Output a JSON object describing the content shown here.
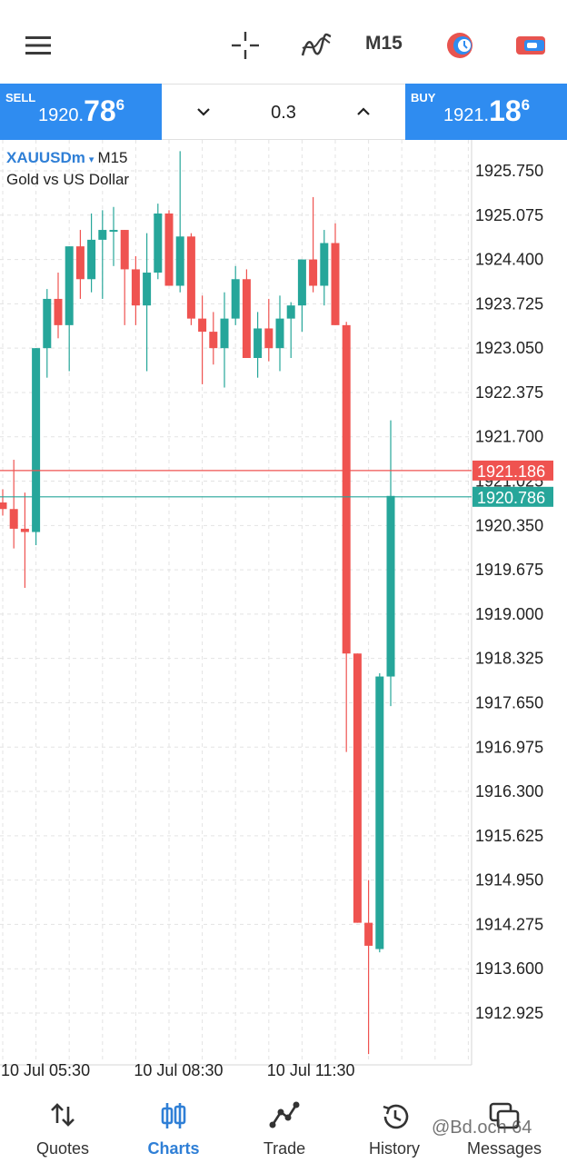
{
  "topbar": {
    "timeframe": "M15",
    "icons": [
      "menu-icon",
      "crosshair-icon",
      "indicators-icon",
      "timeframe",
      "objects-icon",
      "one-click-trading-icon"
    ]
  },
  "trade_panel": {
    "sell_label": "SELL",
    "sell_price_small": "1920.",
    "sell_price_big": "78",
    "sell_price_sup": "6",
    "buy_label": "BUY",
    "buy_price_small": "1921.",
    "buy_price_big": "18",
    "buy_price_sup": "6",
    "volume": "0.3",
    "accent_color": "#2f8cf0"
  },
  "chart_info": {
    "symbol": "XAUUSDm",
    "dropdown_glyph": "▾",
    "timeframe": "M15",
    "description": "Gold vs US Dollar"
  },
  "chart_data": {
    "type": "candlestick",
    "ylim": [
      1912.25,
      1926.1
    ],
    "y_ticks": [
      "1925.750",
      "1925.075",
      "1924.400",
      "1923.725",
      "1923.050",
      "1922.375",
      "1921.700",
      "1921.025",
      "1920.350",
      "1919.675",
      "1919.000",
      "1918.325",
      "1917.650",
      "1916.975",
      "1916.300",
      "1915.625",
      "1914.950",
      "1914.275",
      "1913.600",
      "1912.925"
    ],
    "x_ticks": [
      {
        "index": 0,
        "label": "10 Jul 05:30"
      },
      {
        "index": 12,
        "label": "10 Jul 08:30"
      },
      {
        "index": 24,
        "label": "10 Jul 11:30"
      }
    ],
    "bid_line": {
      "value": 1920.786,
      "label": "1920.786",
      "color": "#26a69a"
    },
    "ask_line": {
      "value": 1921.186,
      "label": "1921.186",
      "color": "#ef5350"
    },
    "up_color": "#26a69a",
    "down_color": "#ef5350",
    "candles": [
      {
        "o": 1920.7,
        "h": 1920.9,
        "l": 1920.5,
        "c": 1920.6
      },
      {
        "o": 1920.6,
        "h": 1921.35,
        "l": 1920.0,
        "c": 1920.3
      },
      {
        "o": 1920.3,
        "h": 1920.85,
        "l": 1919.4,
        "c": 1920.25
      },
      {
        "o": 1920.25,
        "h": 1923.05,
        "l": 1920.05,
        "c": 1923.05
      },
      {
        "o": 1923.05,
        "h": 1923.95,
        "l": 1922.6,
        "c": 1923.8
      },
      {
        "o": 1923.8,
        "h": 1924.2,
        "l": 1923.2,
        "c": 1923.4
      },
      {
        "o": 1923.4,
        "h": 1924.6,
        "l": 1922.7,
        "c": 1924.6
      },
      {
        "o": 1924.6,
        "h": 1924.85,
        "l": 1923.8,
        "c": 1924.1
      },
      {
        "o": 1924.1,
        "h": 1925.1,
        "l": 1923.9,
        "c": 1924.7
      },
      {
        "o": 1924.7,
        "h": 1925.15,
        "l": 1923.8,
        "c": 1924.85
      },
      {
        "o": 1924.85,
        "h": 1925.2,
        "l": 1924.3,
        "c": 1924.85
      },
      {
        "o": 1924.85,
        "h": 1924.85,
        "l": 1923.4,
        "c": 1924.25
      },
      {
        "o": 1924.25,
        "h": 1924.45,
        "l": 1923.4,
        "c": 1923.7
      },
      {
        "o": 1923.7,
        "h": 1924.8,
        "l": 1922.7,
        "c": 1924.2
      },
      {
        "o": 1924.2,
        "h": 1925.25,
        "l": 1924.1,
        "c": 1925.1
      },
      {
        "o": 1925.1,
        "h": 1925.15,
        "l": 1924.0,
        "c": 1924.0
      },
      {
        "o": 1924.0,
        "h": 1926.05,
        "l": 1923.9,
        "c": 1924.75
      },
      {
        "o": 1924.75,
        "h": 1924.8,
        "l": 1923.4,
        "c": 1923.5
      },
      {
        "o": 1923.5,
        "h": 1923.85,
        "l": 1922.5,
        "c": 1923.3
      },
      {
        "o": 1923.3,
        "h": 1923.6,
        "l": 1922.8,
        "c": 1923.05
      },
      {
        "o": 1923.05,
        "h": 1923.9,
        "l": 1922.45,
        "c": 1923.5
      },
      {
        "o": 1923.5,
        "h": 1924.3,
        "l": 1923.4,
        "c": 1924.1
      },
      {
        "o": 1924.1,
        "h": 1924.25,
        "l": 1922.9,
        "c": 1922.9
      },
      {
        "o": 1922.9,
        "h": 1923.6,
        "l": 1922.6,
        "c": 1923.35
      },
      {
        "o": 1923.35,
        "h": 1923.8,
        "l": 1922.85,
        "c": 1923.05
      },
      {
        "o": 1923.05,
        "h": 1923.85,
        "l": 1922.7,
        "c": 1923.5
      },
      {
        "o": 1923.5,
        "h": 1923.75,
        "l": 1922.9,
        "c": 1923.7
      },
      {
        "o": 1923.7,
        "h": 1924.4,
        "l": 1923.3,
        "c": 1924.4
      },
      {
        "o": 1924.4,
        "h": 1925.35,
        "l": 1923.9,
        "c": 1924.0
      },
      {
        "o": 1924.0,
        "h": 1924.85,
        "l": 1923.7,
        "c": 1924.65
      },
      {
        "o": 1924.65,
        "h": 1924.95,
        "l": 1923.4,
        "c": 1923.4
      },
      {
        "o": 1923.4,
        "h": 1923.45,
        "l": 1916.9,
        "c": 1918.4
      },
      {
        "o": 1918.4,
        "h": 1918.4,
        "l": 1914.3,
        "c": 1914.3
      },
      {
        "o": 1914.3,
        "h": 1914.95,
        "l": 1912.3,
        "c": 1913.95
      },
      {
        "o": 1913.9,
        "h": 1918.1,
        "l": 1913.85,
        "c": 1918.05
      },
      {
        "o": 1918.05,
        "h": 1921.95,
        "l": 1917.6,
        "c": 1920.8
      }
    ]
  },
  "bottom_nav": {
    "items": [
      {
        "label": "Quotes",
        "icon": "quotes-icon"
      },
      {
        "label": "Charts",
        "icon": "charts-icon"
      },
      {
        "label": "Trade",
        "icon": "trade-icon"
      },
      {
        "label": "History",
        "icon": "history-icon"
      },
      {
        "label": "Messages",
        "icon": "messages-icon"
      }
    ],
    "active": "Charts",
    "active_color": "#2f7fd6"
  },
  "watermark": "@Bd.och 64"
}
